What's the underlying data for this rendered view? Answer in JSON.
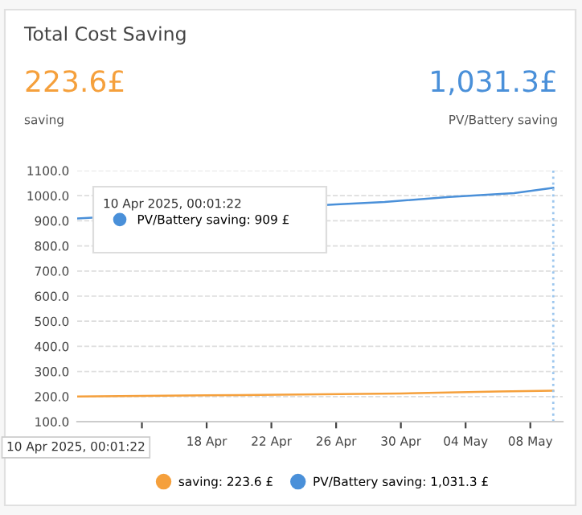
{
  "chart_data": {
    "type": "line",
    "title": "Total Cost Saving",
    "x": [
      "2025-04-10",
      "2025-04-20",
      "2025-04-30",
      "2025-05-06",
      "2025-05-09T10:00"
    ],
    "series": [
      {
        "name": "saving: 223.6 £",
        "color": "#f5a03c",
        "values": [
          200,
          206,
          212,
          220,
          223.6
        ]
      },
      {
        "name": "PV/Battery saving: 1,031.3 £",
        "color": "#4a90d9",
        "x": [
          "2025-04-10T00:01",
          "2025-04-26",
          "2025-04-29",
          "2025-05-03",
          "2025-05-07",
          "2025-05-09T10:00"
        ],
        "values": [
          909,
          965,
          975,
          995,
          1010,
          1031.3
        ]
      }
    ],
    "annotations": [
      "223.6£",
      "saving",
      "1,031.3£",
      "PV/Battery saving",
      "10 Apr 2025, 00:01:22",
      "PV/Battery saving: 909 £",
      "10 Apr 2025, 00:01:22"
    ],
    "xlim": [
      "2025-04-10",
      "2025-05-10"
    ],
    "xticks": [
      {
        "value": "2025-04-14",
        "label": null
      },
      {
        "value": "2025-04-18",
        "label": "18 Apr"
      },
      {
        "value": "2025-04-22",
        "label": "22 Apr"
      },
      {
        "value": "2025-04-26",
        "label": "26 Apr"
      },
      {
        "value": "2025-04-30",
        "label": "30 Apr"
      },
      {
        "value": "2025-05-04",
        "label": "04 May"
      },
      {
        "value": "2025-05-08",
        "label": "08 May"
      }
    ],
    "ylim": [
      100,
      1100
    ],
    "yticks": [
      {
        "value": 100,
        "label": "100.0"
      },
      {
        "value": 200,
        "label": "200.0"
      },
      {
        "value": 300,
        "label": "300.0"
      },
      {
        "value": 400,
        "label": "400.0"
      },
      {
        "value": 500,
        "label": "500.0"
      },
      {
        "value": 600,
        "label": "600.0"
      },
      {
        "value": 700,
        "label": "700.0"
      },
      {
        "value": 800,
        "label": "800.0"
      },
      {
        "value": 900,
        "label": "900.0"
      },
      {
        "value": 1000,
        "label": "1000.0"
      },
      {
        "value": 1100,
        "label": "1100.0"
      }
    ],
    "ref_lines": [
      {
        "axis": "x",
        "value": "2025-05-09T10:00",
        "color": "#9cc6ee",
        "line_style": "dotted"
      }
    ],
    "grid": "y",
    "legend": "bottom",
    "marker": "none",
    "line_style": "solid"
  }
}
